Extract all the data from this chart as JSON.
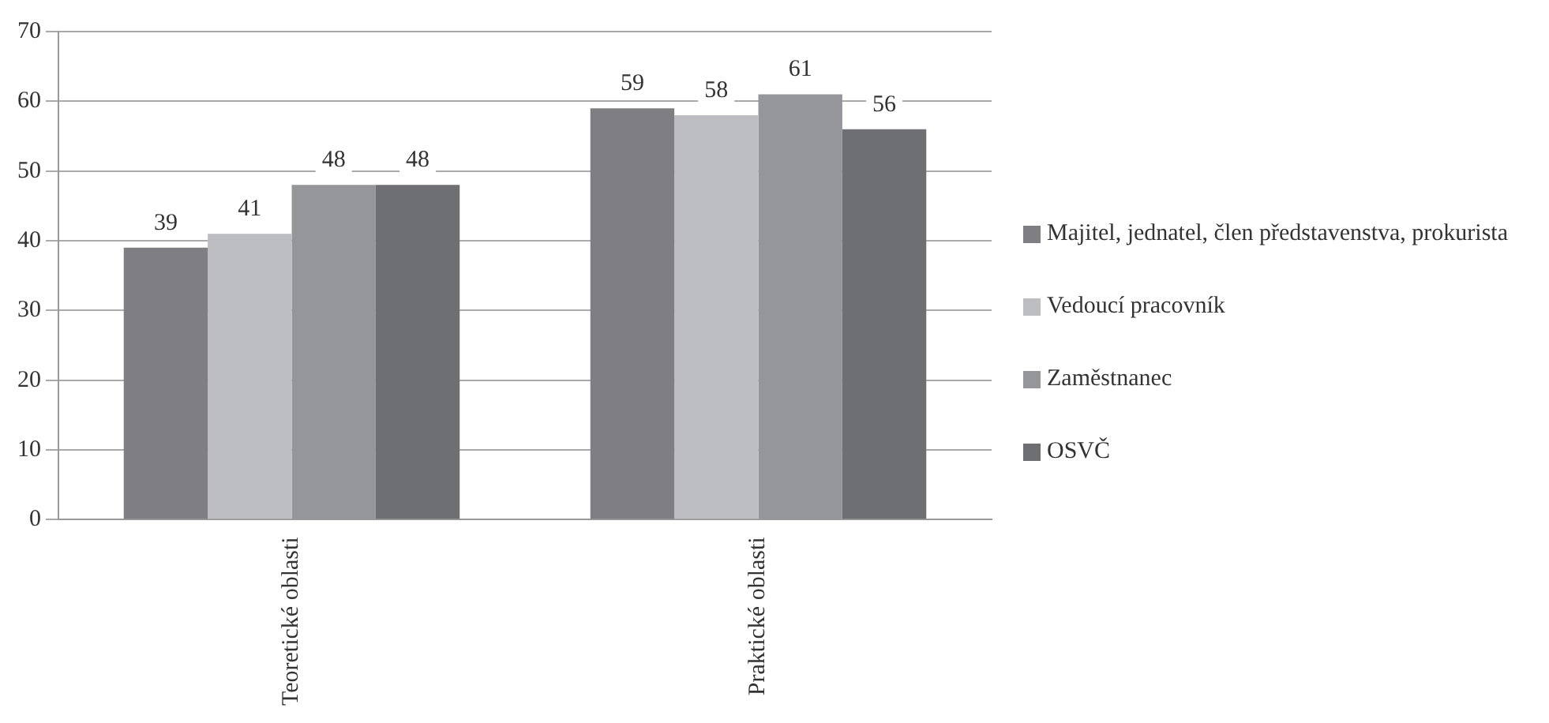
{
  "chart_data": {
    "type": "bar",
    "categories": [
      "Teoretické oblasti",
      "Praktické oblasti"
    ],
    "series": [
      {
        "name": "Majitel, jednatel, člen představenstva, prokurista",
        "color": "#7f7f83",
        "values": [
          39,
          59
        ]
      },
      {
        "name": "Vedoucí pracovník",
        "color": "#bdbec1",
        "values": [
          41,
          58
        ]
      },
      {
        "name": "Zaměstnanec",
        "color": "#959699",
        "values": [
          48,
          61
        ]
      },
      {
        "name": "OSVČ",
        "color": "#6e6f73",
        "values": [
          48,
          56
        ]
      }
    ],
    "ylim": [
      0,
      70
    ],
    "yticks": [
      0,
      10,
      20,
      30,
      40,
      50,
      60,
      70
    ],
    "grid": "y",
    "legend": "right",
    "data_labels": true
  }
}
